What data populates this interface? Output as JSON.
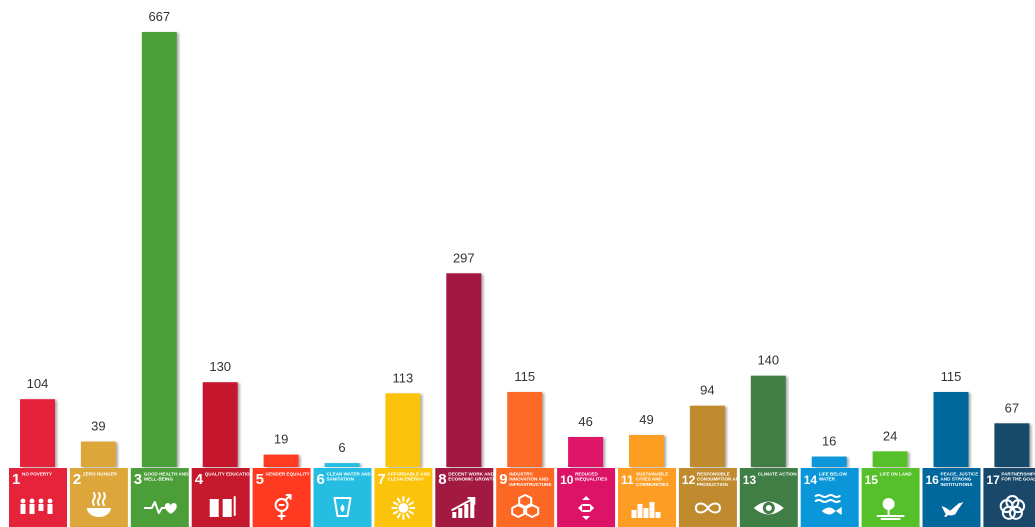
{
  "chart_data": {
    "type": "bar",
    "title": "",
    "xlabel": "",
    "ylabel": "",
    "ylim": [
      0,
      667
    ],
    "grid": false,
    "legend": "none",
    "categories": [
      {
        "num": "1",
        "name": "NO POVERTY",
        "color": "#E5243B",
        "icon": "family-icon"
      },
      {
        "num": "2",
        "name": "ZERO HUNGER",
        "color": "#DDA63A",
        "icon": "bowl-icon"
      },
      {
        "num": "3",
        "name": "GOOD HEALTH AND WELL-BEING",
        "color": "#4C9F38",
        "icon": "heartbeat-icon"
      },
      {
        "num": "4",
        "name": "QUALITY EDUCATION",
        "color": "#C5192D",
        "icon": "book-icon"
      },
      {
        "num": "5",
        "name": "GENDER EQUALITY",
        "color": "#FF3A21",
        "icon": "gender-icon"
      },
      {
        "num": "6",
        "name": "CLEAN WATER AND SANITATION",
        "color": "#26BDE2",
        "icon": "water-drop-icon"
      },
      {
        "num": "7",
        "name": "AFFORDABLE AND CLEAN ENERGY",
        "color": "#FCC30B",
        "icon": "sun-icon"
      },
      {
        "num": "8",
        "name": "DECENT WORK AND ECONOMIC GROWTH",
        "color": "#A21942",
        "icon": "growth-chart-icon"
      },
      {
        "num": "9",
        "name": "INDUSTRY, INNOVATION AND INFRASTRUCTURE",
        "color": "#FD6925",
        "icon": "cubes-icon"
      },
      {
        "num": "10",
        "name": "REDUCED INEQUALITIES",
        "color": "#DD1367",
        "icon": "arrows-icon"
      },
      {
        "num": "11",
        "name": "SUSTAINABLE CITIES AND COMMUNITIES",
        "color": "#FD9D24",
        "icon": "buildings-icon"
      },
      {
        "num": "12",
        "name": "RESPONSIBLE CONSUMPTION AND PRODUCTION",
        "color": "#BF8B2E",
        "icon": "infinity-icon"
      },
      {
        "num": "13",
        "name": "CLIMATE ACTION",
        "color": "#3F7E44",
        "icon": "eye-globe-icon"
      },
      {
        "num": "14",
        "name": "LIFE BELOW WATER",
        "color": "#0A97D9",
        "icon": "fish-icon"
      },
      {
        "num": "15",
        "name": "LIFE ON LAND",
        "color": "#56C02B",
        "icon": "tree-icon"
      },
      {
        "num": "16",
        "name": "PEACE, JUSTICE AND STRONG INSTITUTIONS",
        "color": "#00689D",
        "icon": "dove-icon"
      },
      {
        "num": "17",
        "name": "PARTNERSHIPS FOR THE GOALS",
        "color": "#19486A",
        "icon": "rings-icon"
      }
    ],
    "values": [
      104,
      39,
      667,
      130,
      19,
      6,
      113,
      297,
      115,
      46,
      49,
      94,
      140,
      16,
      24,
      115,
      67
    ]
  }
}
